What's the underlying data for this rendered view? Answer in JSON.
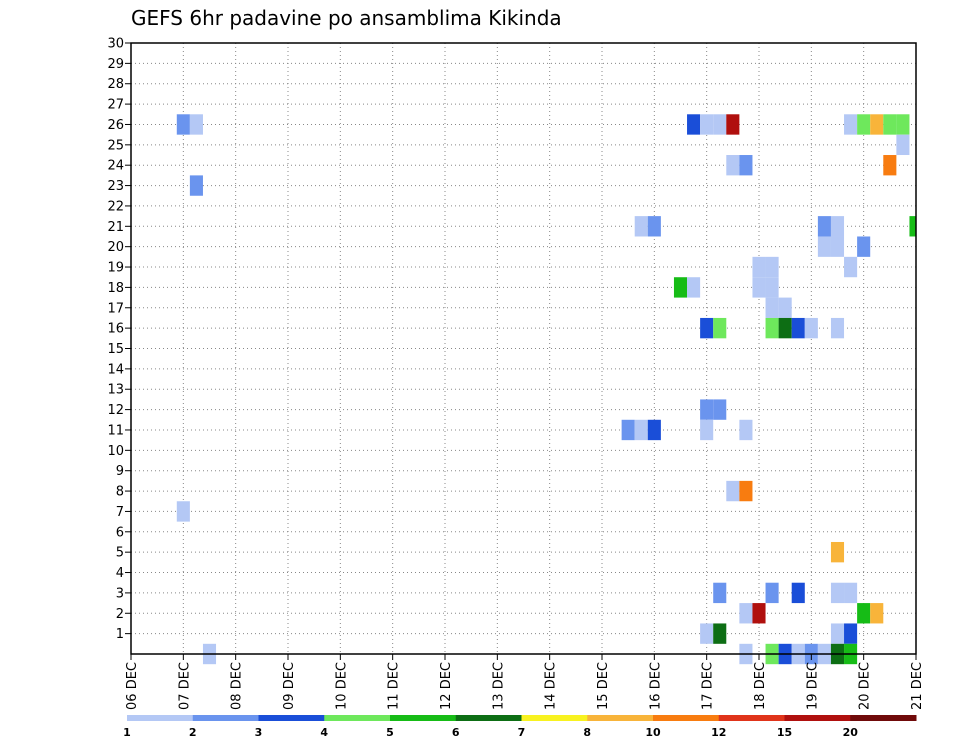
{
  "chart_data": {
    "type": "heatmap",
    "title": "GEFS 6hr padavine po ansamblima Kikinda",
    "xlabel": "",
    "ylabel": "",
    "x_tick_labels": [
      "06 DEC",
      "07 DEC",
      "08 DEC",
      "09 DEC",
      "10 DEC",
      "11 DEC",
      "12 DEC",
      "13 DEC",
      "14 DEC",
      "15 DEC",
      "16 DEC",
      "17 DEC",
      "18 DEC",
      "19 DEC",
      "20 DEC",
      "21 DEC"
    ],
    "y_tick_labels": [
      "1",
      "2",
      "3",
      "4",
      "5",
      "6",
      "7",
      "8",
      "9",
      "10",
      "11",
      "12",
      "13",
      "14",
      "15",
      "16",
      "17",
      "18",
      "19",
      "20",
      "21",
      "22",
      "23",
      "24",
      "25",
      "26",
      "27",
      "28",
      "29",
      "30"
    ],
    "ylim": [
      0,
      30
    ],
    "time_steps": 60,
    "legend": {
      "labels": [
        "1",
        "2",
        "3",
        "4",
        "5",
        "6",
        "7",
        "8",
        "10",
        "12",
        "15",
        "20"
      ],
      "colors": [
        "#b4c8f5",
        "#6a94ee",
        "#1a4ed8",
        "#6ee85c",
        "#16bc16",
        "#0d6e14",
        "#f8f220",
        "#f8b43a",
        "#f87c10",
        "#e0341a",
        "#b0100e",
        "#700a0a"
      ]
    },
    "cells": [
      {
        "t": 4,
        "m": 26,
        "c": 1
      },
      {
        "t": 5,
        "m": 26,
        "c": 0
      },
      {
        "t": 5,
        "m": 23,
        "c": 1
      },
      {
        "t": 4,
        "m": 7,
        "c": 0
      },
      {
        "t": 6,
        "m": 0,
        "c": 0
      },
      {
        "t": 43,
        "m": 26,
        "c": 2
      },
      {
        "t": 44,
        "m": 26,
        "c": 0
      },
      {
        "t": 45,
        "m": 26,
        "c": 0
      },
      {
        "t": 46,
        "m": 26,
        "c": 10
      },
      {
        "t": 55,
        "m": 26,
        "c": 0
      },
      {
        "t": 56,
        "m": 26,
        "c": 3
      },
      {
        "t": 57,
        "m": 26,
        "c": 7
      },
      {
        "t": 58,
        "m": 26,
        "c": 3
      },
      {
        "t": 59,
        "m": 26,
        "c": 3
      },
      {
        "t": 59,
        "m": 25,
        "c": 0
      },
      {
        "t": 46,
        "m": 24,
        "c": 0
      },
      {
        "t": 47,
        "m": 24,
        "c": 1
      },
      {
        "t": 58,
        "m": 24,
        "c": 8
      },
      {
        "t": 39,
        "m": 21,
        "c": 0
      },
      {
        "t": 40,
        "m": 21,
        "c": 1
      },
      {
        "t": 53,
        "m": 21,
        "c": 1
      },
      {
        "t": 54,
        "m": 21,
        "c": 0
      },
      {
        "t": 60,
        "m": 21,
        "c": 4
      },
      {
        "t": 53,
        "m": 20,
        "c": 0
      },
      {
        "t": 54,
        "m": 20,
        "c": 0
      },
      {
        "t": 56,
        "m": 20,
        "c": 1
      },
      {
        "t": 48,
        "m": 19,
        "c": 0
      },
      {
        "t": 49,
        "m": 19,
        "c": 0
      },
      {
        "t": 55,
        "m": 19,
        "c": 0
      },
      {
        "t": 48,
        "m": 18,
        "c": 0
      },
      {
        "t": 49,
        "m": 18,
        "c": 0
      },
      {
        "t": 42,
        "m": 18,
        "c": 4
      },
      {
        "t": 43,
        "m": 18,
        "c": 0
      },
      {
        "t": 49,
        "m": 17,
        "c": 0
      },
      {
        "t": 50,
        "m": 17,
        "c": 0
      },
      {
        "t": 44,
        "m": 16,
        "c": 2
      },
      {
        "t": 45,
        "m": 16,
        "c": 3
      },
      {
        "t": 49,
        "m": 16,
        "c": 3
      },
      {
        "t": 50,
        "m": 16,
        "c": 5
      },
      {
        "t": 51,
        "m": 16,
        "c": 2
      },
      {
        "t": 52,
        "m": 16,
        "c": 0
      },
      {
        "t": 54,
        "m": 16,
        "c": 0
      },
      {
        "t": 44,
        "m": 12,
        "c": 1
      },
      {
        "t": 45,
        "m": 12,
        "c": 1
      },
      {
        "t": 38,
        "m": 11,
        "c": 1
      },
      {
        "t": 39,
        "m": 11,
        "c": 0
      },
      {
        "t": 40,
        "m": 11,
        "c": 2
      },
      {
        "t": 44,
        "m": 11,
        "c": 0
      },
      {
        "t": 47,
        "m": 11,
        "c": 0
      },
      {
        "t": 46,
        "m": 8,
        "c": 0
      },
      {
        "t": 47,
        "m": 8,
        "c": 8
      },
      {
        "t": 54,
        "m": 5,
        "c": 7
      },
      {
        "t": 45,
        "m": 3,
        "c": 1
      },
      {
        "t": 49,
        "m": 3,
        "c": 1
      },
      {
        "t": 51,
        "m": 3,
        "c": 2
      },
      {
        "t": 54,
        "m": 3,
        "c": 0
      },
      {
        "t": 55,
        "m": 3,
        "c": 0
      },
      {
        "t": 47,
        "m": 2,
        "c": 0
      },
      {
        "t": 48,
        "m": 2,
        "c": 10
      },
      {
        "t": 56,
        "m": 2,
        "c": 4
      },
      {
        "t": 57,
        "m": 2,
        "c": 7
      },
      {
        "t": 44,
        "m": 1,
        "c": 0
      },
      {
        "t": 45,
        "m": 1,
        "c": 5
      },
      {
        "t": 54,
        "m": 1,
        "c": 0
      },
      {
        "t": 55,
        "m": 1,
        "c": 2
      },
      {
        "t": 47,
        "m": 0,
        "c": 0
      },
      {
        "t": 49,
        "m": 0,
        "c": 3
      },
      {
        "t": 50,
        "m": 0,
        "c": 2
      },
      {
        "t": 51,
        "m": 0,
        "c": 0
      },
      {
        "t": 52,
        "m": 0,
        "c": 1
      },
      {
        "t": 53,
        "m": 0,
        "c": 0
      },
      {
        "t": 54,
        "m": 0,
        "c": 5
      },
      {
        "t": 55,
        "m": 0,
        "c": 4
      }
    ]
  }
}
